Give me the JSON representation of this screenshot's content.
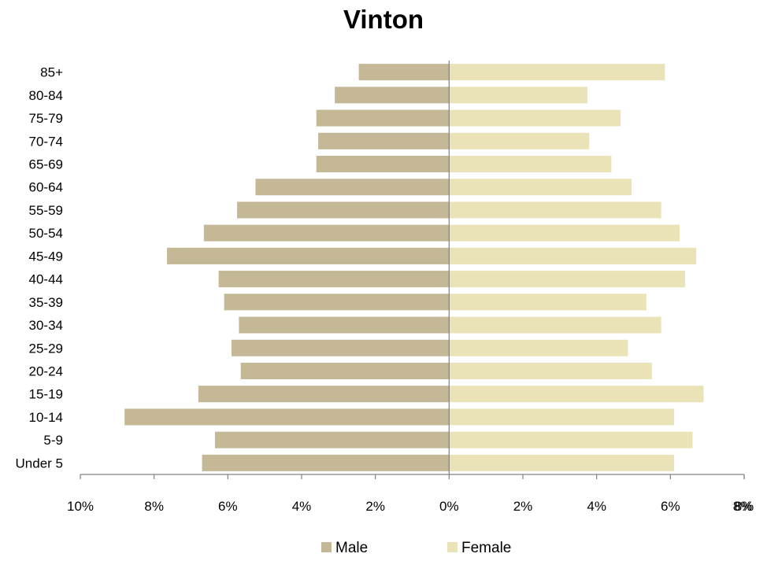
{
  "chart_data": {
    "type": "bar",
    "orientation": "horizontal",
    "subtype": "population-pyramid",
    "title": "Vinton",
    "categories": [
      "Under 5",
      "5-9",
      "10-14",
      "15-19",
      "20-24",
      "25-29",
      "30-34",
      "35-39",
      "40-44",
      "45-49",
      "50-54",
      "55-59",
      "60-64",
      "65-69",
      "70-74",
      "75-79",
      "80-84",
      "85+"
    ],
    "series": [
      {
        "name": "Male",
        "color": "#c4b897",
        "values": [
          6.7,
          6.35,
          8.8,
          6.8,
          5.65,
          5.9,
          5.7,
          6.1,
          6.25,
          7.65,
          6.65,
          5.75,
          5.25,
          3.6,
          3.55,
          3.6,
          3.1,
          2.45
        ]
      },
      {
        "name": "Female",
        "color": "#ebe3b8",
        "values": [
          6.1,
          6.6,
          6.1,
          6.9,
          5.5,
          4.85,
          5.75,
          5.35,
          6.4,
          6.7,
          6.25,
          5.75,
          4.95,
          4.4,
          3.8,
          4.65,
          3.75,
          5.85
        ]
      }
    ],
    "xaxis": {
      "tick_values": [
        -10,
        -8,
        -6,
        -4,
        -2,
        0,
        2,
        4,
        6,
        8
      ],
      "tick_labels": [
        "10%",
        "8%",
        "6%",
        "4%",
        "2%",
        "0%",
        "2%",
        "4%",
        "6%",
        "8%"
      ],
      "range": [
        -10,
        8
      ]
    },
    "grid": false,
    "legend_position": "bottom"
  },
  "legend": {
    "male": "Male",
    "female": "Female"
  }
}
